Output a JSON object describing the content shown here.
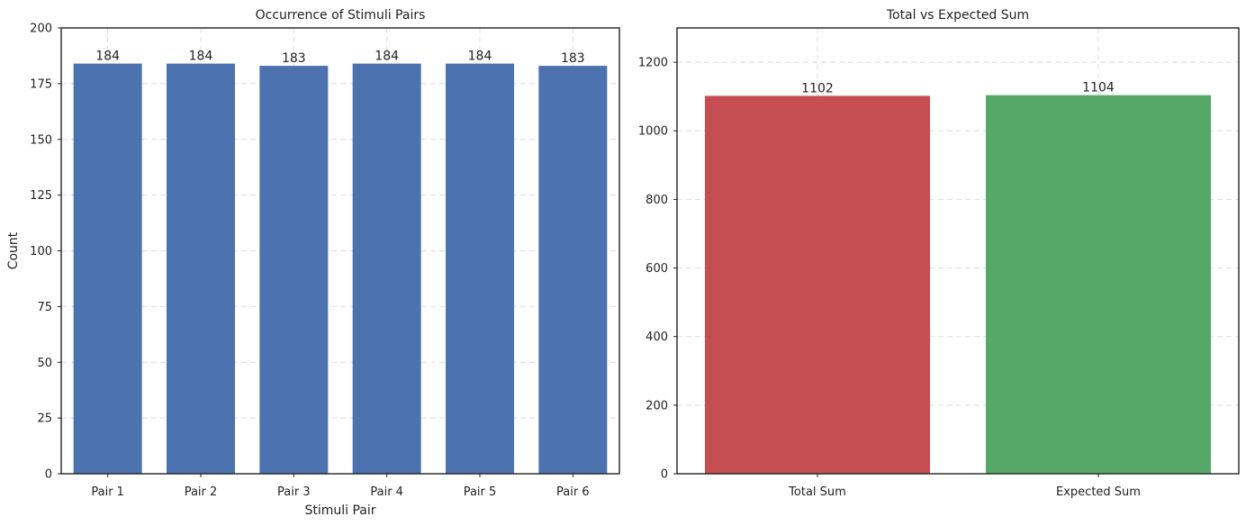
{
  "chart_data": [
    {
      "type": "bar",
      "title": "Occurrence of Stimuli Pairs",
      "xlabel": "Stimuli Pair",
      "ylabel": "Count",
      "categories": [
        "Pair 1",
        "Pair 2",
        "Pair 3",
        "Pair 4",
        "Pair 5",
        "Pair 6"
      ],
      "values": [
        184,
        184,
        183,
        184,
        184,
        183
      ],
      "data_labels": [
        "184",
        "184",
        "183",
        "184",
        "184",
        "183"
      ],
      "ylim": [
        0,
        200
      ],
      "yticks": [
        0,
        25,
        50,
        75,
        100,
        125,
        150,
        175,
        200
      ],
      "ytick_labels": [
        "0",
        "25",
        "50",
        "75",
        "100",
        "125",
        "150",
        "175",
        "200"
      ],
      "bar_colors": [
        "#4c72b0",
        "#4c72b0",
        "#4c72b0",
        "#4c72b0",
        "#4c72b0",
        "#4c72b0"
      ],
      "grid": true
    },
    {
      "type": "bar",
      "title": "Total vs Expected Sum",
      "xlabel": "",
      "ylabel": "",
      "categories": [
        "Total Sum",
        "Expected Sum"
      ],
      "values": [
        1102,
        1104
      ],
      "data_labels": [
        "1102",
        "1104"
      ],
      "ylim": [
        0,
        1300
      ],
      "yticks": [
        0,
        200,
        400,
        600,
        800,
        1000,
        1200
      ],
      "ytick_labels": [
        "0",
        "200",
        "400",
        "600",
        "800",
        "1000",
        "1200"
      ],
      "bar_colors": [
        "#c44e52",
        "#55a868"
      ],
      "grid": true
    }
  ]
}
